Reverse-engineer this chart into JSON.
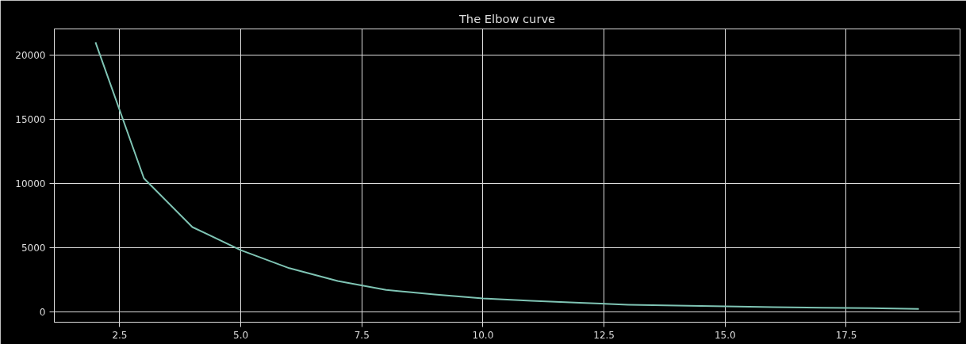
{
  "chart_data": {
    "type": "line",
    "title": "The Elbow curve",
    "x": [
      2,
      3,
      4,
      5,
      6,
      7,
      8,
      9,
      10,
      11,
      12,
      13,
      14,
      15,
      16,
      17,
      18,
      19
    ],
    "series": [
      {
        "color": "#7fc4b4",
        "values": [
          21000,
          10400,
          6600,
          4800,
          3400,
          2400,
          1700,
          1350,
          1050,
          850,
          700,
          550,
          480,
          420,
          360,
          320,
          280,
          230
        ]
      }
    ],
    "xlim": [
      1.15,
      19.85
    ],
    "xticks": [
      {
        "value": 2.5,
        "label": "2.5"
      },
      {
        "value": 5,
        "label": "5.0"
      },
      {
        "value": 7.5,
        "label": "7.5"
      },
      {
        "value": 10,
        "label": "10.0"
      },
      {
        "value": 12.5,
        "label": "12.5"
      },
      {
        "value": 15,
        "label": "15.0"
      },
      {
        "value": 17.5,
        "label": "17.5"
      }
    ],
    "ylim": [
      -810,
      22040
    ],
    "yticks": [
      0,
      5000,
      10000,
      15000,
      20000
    ],
    "grid": true,
    "marker": "none",
    "line_style": "solid"
  }
}
